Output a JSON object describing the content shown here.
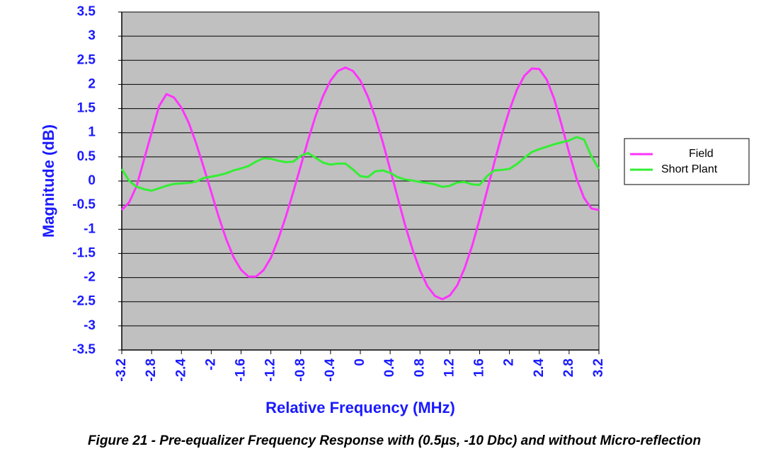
{
  "chart_data": {
    "type": "line",
    "caption": "Figure 21 - Pre-equalizer Frequency Response with (0.5µs, -10 Dbc) and without Micro-reflection",
    "xlabel": "Relative Frequency (MHz)",
    "ylabel": "Magnitude (dB)",
    "x": [
      -3.2,
      -3.1,
      -3.0,
      -2.9,
      -2.8,
      -2.7,
      -2.6,
      -2.5,
      -2.4,
      -2.3,
      -2.2,
      -2.1,
      -2.0,
      -1.9,
      -1.8,
      -1.7,
      -1.6,
      -1.5,
      -1.4,
      -1.3,
      -1.2,
      -1.1,
      -1.0,
      -0.9,
      -0.8,
      -0.7,
      -0.6,
      -0.5,
      -0.4,
      -0.3,
      -0.2,
      -0.1,
      0,
      0.1,
      0.2,
      0.3,
      0.4,
      0.5,
      0.6,
      0.7,
      0.8,
      0.9,
      1.0,
      1.1,
      1.2,
      1.3,
      1.4,
      1.5,
      1.6,
      1.7,
      1.8,
      1.9,
      2.0,
      2.1,
      2.2,
      2.3,
      2.4,
      2.5,
      2.6,
      2.7,
      2.8,
      2.9,
      3.0,
      3.1,
      3.2
    ],
    "series": [
      {
        "name": "Field",
        "color": "#ff33ff",
        "values": [
          -0.6,
          -0.44,
          -0.1,
          0.45,
          1.0,
          1.55,
          1.8,
          1.73,
          1.52,
          1.2,
          0.77,
          0.28,
          -0.23,
          -0.74,
          -1.2,
          -1.58,
          -1.84,
          -1.98,
          -1.98,
          -1.85,
          -1.59,
          -1.2,
          -0.74,
          -0.23,
          0.31,
          0.85,
          1.35,
          1.76,
          2.08,
          2.28,
          2.35,
          2.28,
          2.08,
          1.75,
          1.32,
          0.81,
          0.24,
          -0.34,
          -0.91,
          -1.42,
          -1.85,
          -2.18,
          -2.38,
          -2.45,
          -2.37,
          -2.16,
          -1.8,
          -1.34,
          -0.79,
          -0.2,
          0.4,
          0.97,
          1.47,
          1.89,
          2.18,
          2.33,
          2.32,
          2.1,
          1.7,
          1.16,
          0.59,
          0.05,
          -0.35,
          -0.57,
          -0.6
        ]
      },
      {
        "name": "Short Plant",
        "color": "#33ee33",
        "values": [
          0.25,
          0.0,
          -0.12,
          -0.17,
          -0.2,
          -0.15,
          -0.1,
          -0.06,
          -0.05,
          -0.04,
          -0.01,
          0.06,
          0.09,
          0.12,
          0.16,
          0.22,
          0.26,
          0.31,
          0.4,
          0.47,
          0.46,
          0.42,
          0.39,
          0.4,
          0.52,
          0.58,
          0.48,
          0.38,
          0.34,
          0.36,
          0.36,
          0.24,
          0.1,
          0.08,
          0.2,
          0.22,
          0.17,
          0.08,
          0.03,
          0.01,
          -0.02,
          -0.04,
          -0.07,
          -0.12,
          -0.1,
          -0.03,
          -0.02,
          -0.07,
          -0.08,
          0.1,
          0.22,
          0.23,
          0.25,
          0.35,
          0.48,
          0.6,
          0.66,
          0.71,
          0.76,
          0.8,
          0.84,
          0.91,
          0.86,
          0.51,
          0.25
        ]
      }
    ],
    "xlim": [
      -3.2,
      3.2
    ],
    "xticks": [
      -3.2,
      -2.8,
      -2.4,
      -2,
      -1.6,
      -1.2,
      -0.8,
      -0.4,
      0,
      0.4,
      0.8,
      1.2,
      1.6,
      2,
      2.4,
      2.8,
      3.2
    ],
    "ylim": [
      -3.5,
      3.5
    ],
    "yticks": [
      3.5,
      3,
      2.5,
      2,
      1.5,
      1,
      0.5,
      0,
      -0.5,
      -1,
      -1.5,
      -2,
      -2.5,
      -3,
      -3.5
    ],
    "grid": true,
    "legend": "right",
    "plot_background": "#c0c0c0"
  }
}
